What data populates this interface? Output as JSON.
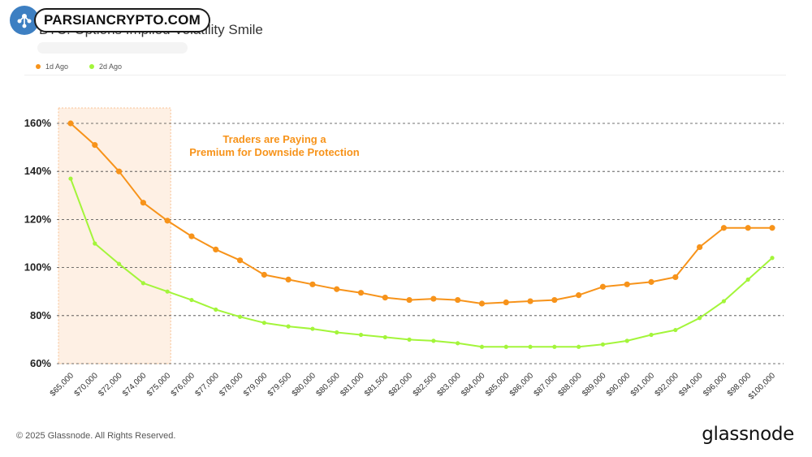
{
  "watermark": {
    "text": "PARSIANCRYPTO.COM"
  },
  "title": "BTC: Options Implied Volatility Smile",
  "legend": [
    {
      "label": "1d Ago",
      "color": "#f7931a"
    },
    {
      "label": "2d Ago",
      "color": "#a3f53a"
    }
  ],
  "annotation": {
    "line1": "Traders are Paying a",
    "line2": "Premium for Downside Protection",
    "color": "#f7931a"
  },
  "footer": "© 2025 Glassnode. All Rights Reserved.",
  "brand": "glassnode",
  "chart_data": {
    "type": "line",
    "categories": [
      "$65,000",
      "$70,000",
      "$72,000",
      "$74,000",
      "$75,000",
      "$76,000",
      "$77,000",
      "$78,000",
      "$79,000",
      "$79,500",
      "$80,000",
      "$80,500",
      "$81,000",
      "$81,500",
      "$82,000",
      "$82,500",
      "$83,000",
      "$84,000",
      "$85,000",
      "$86,000",
      "$87,000",
      "$88,000",
      "$89,000",
      "$90,000",
      "$91,000",
      "$92,000",
      "$94,000",
      "$96,000",
      "$98,000",
      "$100,000"
    ],
    "y_ticks": [
      "60%",
      "80%",
      "100%",
      "120%",
      "140%",
      "160%"
    ],
    "ylim": [
      60,
      160
    ],
    "grid": true,
    "highlight": {
      "from_category": "$65,000",
      "to_category": "$75,000"
    },
    "series": [
      {
        "name": "1d Ago",
        "color": "#f7931a",
        "values": [
          160,
          151,
          140,
          127,
          119.5,
          113,
          107.5,
          103,
          97,
          95,
          93,
          91,
          89.5,
          87.5,
          86.5,
          87,
          86.5,
          85,
          85.5,
          86,
          86.5,
          88.5,
          92,
          93,
          94,
          96,
          108.5,
          116.5,
          116.5,
          116.5
        ]
      },
      {
        "name": "2d Ago",
        "color": "#a3f53a",
        "values": [
          137,
          110,
          101.5,
          93.5,
          90,
          86.5,
          82.5,
          79.5,
          77,
          75.5,
          74.5,
          73,
          72,
          71,
          70,
          69.5,
          68.5,
          67,
          67,
          67,
          67,
          67,
          68,
          69.5,
          72,
          74,
          79,
          86,
          95,
          104
        ]
      }
    ]
  }
}
